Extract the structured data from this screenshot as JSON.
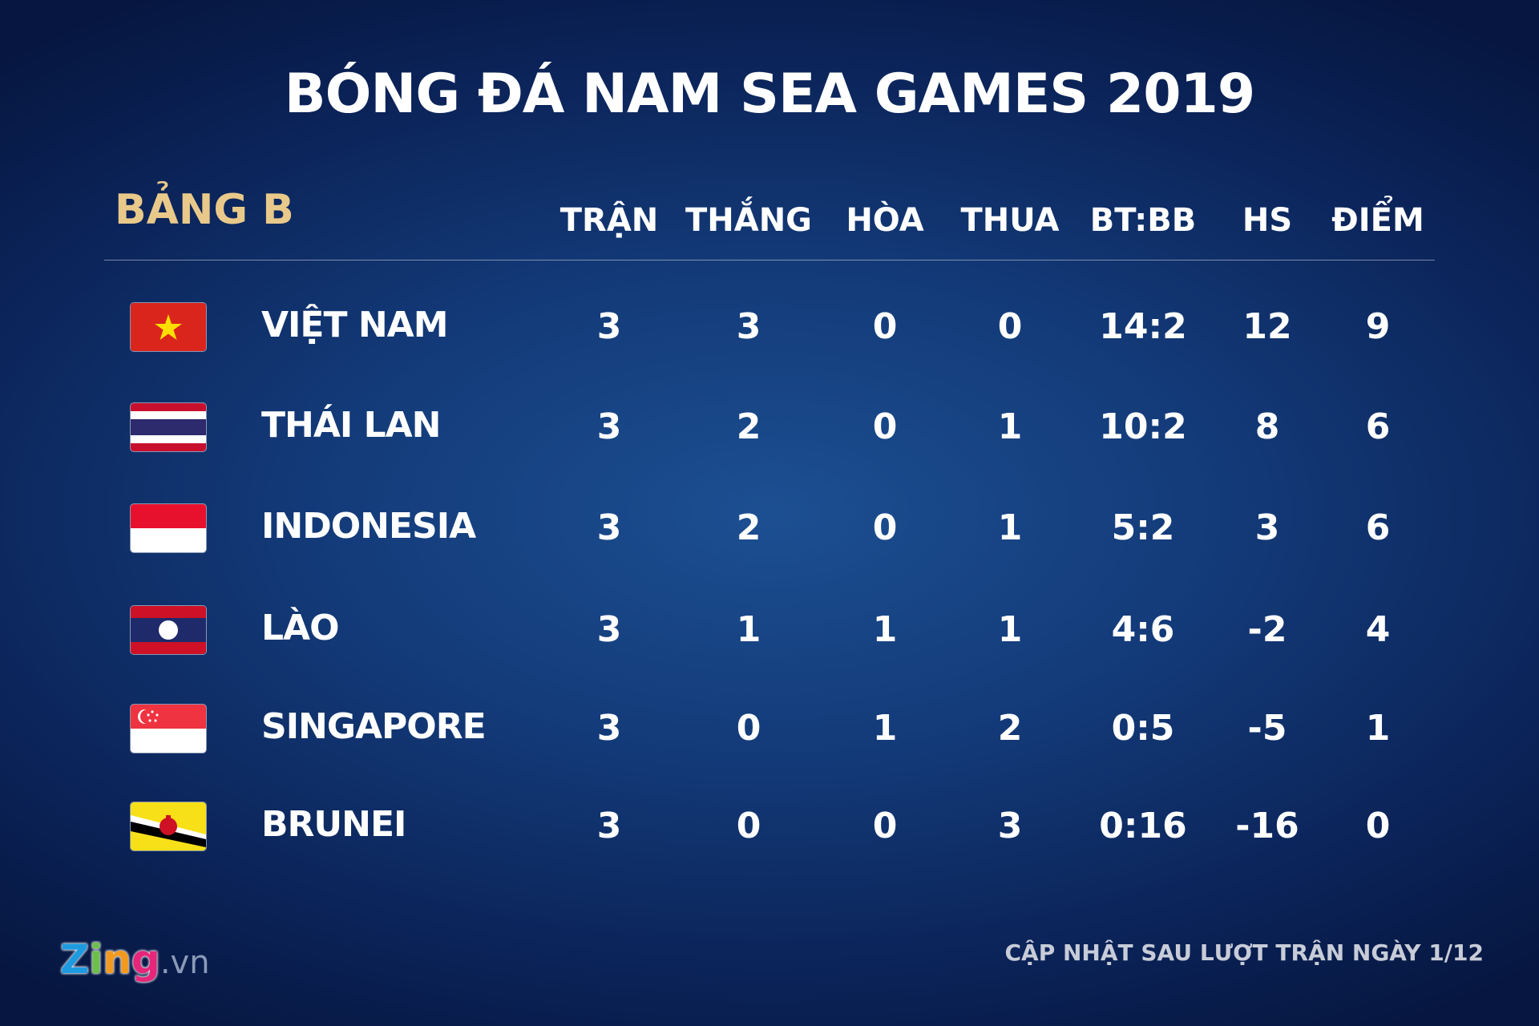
{
  "title": "BÓNG ĐÁ NAM SEA GAMES 2019",
  "group": "BẢNG B",
  "columns": [
    "TRẬN",
    "THẮNG",
    "HÒA",
    "THUA",
    "BT:BB",
    "HS",
    "ĐIỂM"
  ],
  "rows": [
    {
      "flag": "vietnam-flag",
      "team": "VIỆT NAM",
      "cells": [
        "3",
        "3",
        "0",
        "0",
        "14:2",
        "12",
        "9"
      ]
    },
    {
      "flag": "thailand-flag",
      "team": "THÁI LAN",
      "cells": [
        "3",
        "2",
        "0",
        "1",
        "10:2",
        "8",
        "6"
      ]
    },
    {
      "flag": "indonesia-flag",
      "team": "INDONESIA",
      "cells": [
        "3",
        "2",
        "0",
        "1",
        "5:2",
        "3",
        "6"
      ]
    },
    {
      "flag": "laos-flag",
      "team": "LÀO",
      "cells": [
        "3",
        "1",
        "1",
        "1",
        "4:6",
        "-2",
        "4"
      ]
    },
    {
      "flag": "singapore-flag",
      "team": "SINGAPORE",
      "cells": [
        "3",
        "0",
        "1",
        "2",
        "0:5",
        "-5",
        "1"
      ]
    },
    {
      "flag": "brunei-flag",
      "team": "BRUNEI",
      "cells": [
        "3",
        "0",
        "0",
        "3",
        "0:16",
        "-16",
        "0"
      ]
    }
  ],
  "logo": {
    "z": "Z",
    "i": "i",
    "n": "n",
    "g": "g",
    "domain": ".vn"
  },
  "updated": "CẬP NHẬT SAU LƯỢT TRẬN NGÀY 1/12",
  "colors": {
    "group_label": "#e9c98a",
    "background": "#133a78"
  }
}
